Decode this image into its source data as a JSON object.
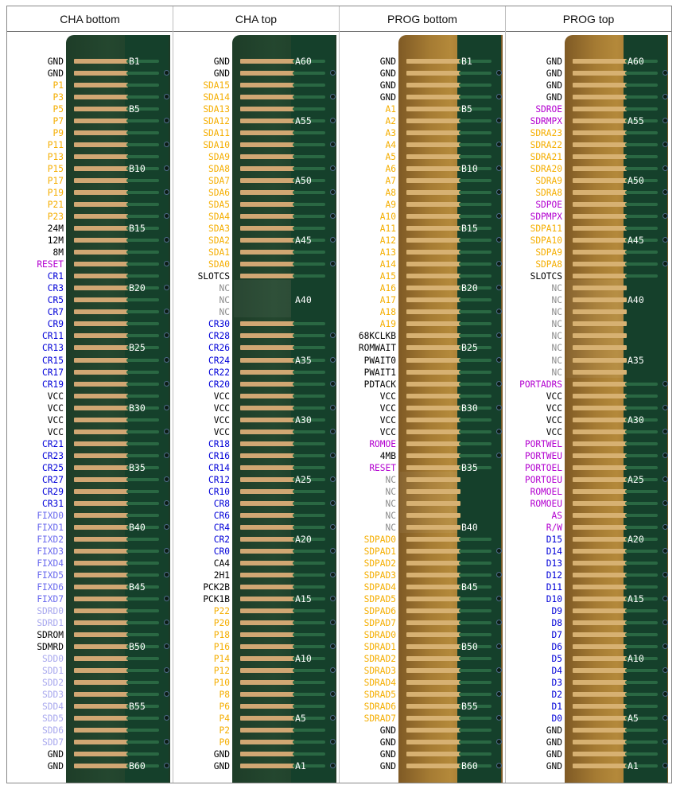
{
  "headers": [
    "CHA bottom",
    "CHA top",
    "PROG bottom",
    "PROG top"
  ],
  "colors": {
    "default": "#000000",
    "orange": "#f5ae00",
    "blue": "#0000d8",
    "magenta": "#b300d0",
    "gray": "#8c8c8c",
    "lightblue": "#6a6aee",
    "lavender": "#a8a8ee"
  },
  "columns": [
    {
      "name": "CHA bottom",
      "board": "green",
      "labels": [
        "GND",
        "GND",
        "P1",
        "P3",
        "P5",
        "P7",
        "P9",
        "P11",
        "P13",
        "P15",
        "P17",
        "P19",
        "P21",
        "P23",
        "24M",
        "12M",
        "8M",
        "RESET",
        "CR1",
        "CR3",
        "CR5",
        "CR7",
        "CR9",
        "CR11",
        "CR13",
        "CR15",
        "CR17",
        "CR19",
        "VCC",
        "VCC",
        "VCC",
        "VCC",
        "CR21",
        "CR23",
        "CR25",
        "CR27",
        "CR29",
        "CR31",
        "FIXD0",
        "FIXD1",
        "FIXD2",
        "FIXD3",
        "FIXD4",
        "FIXD5",
        "FIXD6",
        "FIXD7",
        "SDRD0",
        "SDRD1",
        "SDROM",
        "SDMRD",
        "SDD0",
        "SDD1",
        "SDD2",
        "SDD3",
        "SDD4",
        "SDD5",
        "SDD6",
        "SDD7",
        "GND",
        "GND"
      ],
      "colors": [
        "default",
        "default",
        "orange",
        "orange",
        "orange",
        "orange",
        "orange",
        "orange",
        "orange",
        "orange",
        "orange",
        "orange",
        "orange",
        "orange",
        "default",
        "default",
        "default",
        "magenta",
        "blue",
        "blue",
        "blue",
        "blue",
        "blue",
        "blue",
        "blue",
        "blue",
        "blue",
        "blue",
        "default",
        "default",
        "default",
        "default",
        "blue",
        "blue",
        "blue",
        "blue",
        "blue",
        "blue",
        "lightblue",
        "lightblue",
        "lightblue",
        "lightblue",
        "lightblue",
        "lightblue",
        "lightblue",
        "lightblue",
        "lavender",
        "lavender",
        "default",
        "default",
        "lavender",
        "lavender",
        "lavender",
        "lavender",
        "lavender",
        "lavender",
        "lavender",
        "lavender",
        "default",
        "default"
      ],
      "pin_labels": [
        {
          "row": 0,
          "text": "B1"
        },
        {
          "row": 4,
          "text": "B5"
        },
        {
          "row": 9,
          "text": "B10"
        },
        {
          "row": 14,
          "text": "B15"
        },
        {
          "row": 19,
          "text": "B20"
        },
        {
          "row": 24,
          "text": "B25"
        },
        {
          "row": 29,
          "text": "B30"
        },
        {
          "row": 34,
          "text": "B35"
        },
        {
          "row": 39,
          "text": "B40"
        },
        {
          "row": 44,
          "text": "B45"
        },
        {
          "row": 49,
          "text": "B50"
        },
        {
          "row": 54,
          "text": "B55"
        },
        {
          "row": 59,
          "text": "B60"
        }
      ]
    },
    {
      "name": "CHA top",
      "board": "green",
      "labels": [
        "GND",
        "GND",
        "SDA15",
        "SDA14",
        "SDA13",
        "SDA12",
        "SDA11",
        "SDA10",
        "SDA9",
        "SDA8",
        "SDA7",
        "SDA6",
        "SDA5",
        "SDA4",
        "SDA3",
        "SDA2",
        "SDA1",
        "SDA0",
        "SLOTCS",
        "NC",
        "NC",
        "NC",
        "CR30",
        "CR28",
        "CR26",
        "CR24",
        "CR22",
        "CR20",
        "VCC",
        "VCC",
        "VCC",
        "VCC",
        "CR18",
        "CR16",
        "CR14",
        "CR12",
        "CR10",
        "CR8",
        "CR6",
        "CR4",
        "CR2",
        "CR0",
        "CA4",
        "2H1",
        "PCK2B",
        "PCK1B",
        "P22",
        "P20",
        "P18",
        "P16",
        "P14",
        "P12",
        "P10",
        "P8",
        "P6",
        "P4",
        "P2",
        "P0",
        "GND",
        "GND"
      ],
      "colors": [
        "default",
        "default",
        "orange",
        "orange",
        "orange",
        "orange",
        "orange",
        "orange",
        "orange",
        "orange",
        "orange",
        "orange",
        "orange",
        "orange",
        "orange",
        "orange",
        "orange",
        "orange",
        "default",
        "gray",
        "gray",
        "gray",
        "blue",
        "blue",
        "blue",
        "blue",
        "blue",
        "blue",
        "default",
        "default",
        "default",
        "default",
        "blue",
        "blue",
        "blue",
        "blue",
        "blue",
        "blue",
        "blue",
        "blue",
        "blue",
        "blue",
        "default",
        "default",
        "default",
        "default",
        "orange",
        "orange",
        "orange",
        "orange",
        "orange",
        "orange",
        "orange",
        "orange",
        "orange",
        "orange",
        "orange",
        "orange",
        "default",
        "default"
      ],
      "pin_labels": [
        {
          "row": 0,
          "text": "A60"
        },
        {
          "row": 5,
          "text": "A55"
        },
        {
          "row": 10,
          "text": "A50"
        },
        {
          "row": 15,
          "text": "A45"
        },
        {
          "row": 20,
          "text": "A40"
        },
        {
          "row": 25,
          "text": "A35"
        },
        {
          "row": 30,
          "text": "A30"
        },
        {
          "row": 35,
          "text": "A25"
        },
        {
          "row": 40,
          "text": "A20"
        },
        {
          "row": 45,
          "text": "A15"
        },
        {
          "row": 50,
          "text": "A10"
        },
        {
          "row": 55,
          "text": "A5"
        },
        {
          "row": 59,
          "text": "A1"
        }
      ]
    },
    {
      "name": "PROG bottom",
      "board": "gold",
      "labels": [
        "GND",
        "GND",
        "GND",
        "GND",
        "A1",
        "A2",
        "A3",
        "A4",
        "A5",
        "A6",
        "A7",
        "A8",
        "A9",
        "A10",
        "A11",
        "A12",
        "A13",
        "A14",
        "A15",
        "A16",
        "A17",
        "A18",
        "A19",
        "68KCLKB",
        "ROMWAIT",
        "PWAIT0",
        "PWAIT1",
        "PDTACK",
        "VCC",
        "VCC",
        "VCC",
        "VCC",
        "ROMOE",
        "4MB",
        "RESET",
        "NC",
        "NC",
        "NC",
        "NC",
        "NC",
        "SDPAD0",
        "SDPAD1",
        "SDPAD2",
        "SDPAD3",
        "SDPAD4",
        "SDPAD5",
        "SDPAD6",
        "SDPAD7",
        "SDRAD0",
        "SDRAD1",
        "SDRAD2",
        "SDRAD3",
        "SDRAD4",
        "SDRAD5",
        "SDRAD6",
        "SDRAD7",
        "GND",
        "GND",
        "GND",
        "GND"
      ],
      "colors": [
        "default",
        "default",
        "default",
        "default",
        "orange",
        "orange",
        "orange",
        "orange",
        "orange",
        "orange",
        "orange",
        "orange",
        "orange",
        "orange",
        "orange",
        "orange",
        "orange",
        "orange",
        "orange",
        "orange",
        "orange",
        "orange",
        "orange",
        "default",
        "default",
        "default",
        "default",
        "default",
        "default",
        "default",
        "default",
        "default",
        "magenta",
        "default",
        "magenta",
        "gray",
        "gray",
        "gray",
        "gray",
        "gray",
        "orange",
        "orange",
        "orange",
        "orange",
        "orange",
        "orange",
        "orange",
        "orange",
        "orange",
        "orange",
        "orange",
        "orange",
        "orange",
        "orange",
        "orange",
        "orange",
        "default",
        "default",
        "default",
        "default"
      ],
      "pin_labels": [
        {
          "row": 0,
          "text": "B1"
        },
        {
          "row": 4,
          "text": "B5"
        },
        {
          "row": 9,
          "text": "B10"
        },
        {
          "row": 14,
          "text": "B15"
        },
        {
          "row": 19,
          "text": "B20"
        },
        {
          "row": 24,
          "text": "B25"
        },
        {
          "row": 29,
          "text": "B30"
        },
        {
          "row": 34,
          "text": "B35"
        },
        {
          "row": 39,
          "text": "B40"
        },
        {
          "row": 44,
          "text": "B45"
        },
        {
          "row": 49,
          "text": "B50"
        },
        {
          "row": 54,
          "text": "B55"
        },
        {
          "row": 59,
          "text": "B60"
        }
      ]
    },
    {
      "name": "PROG top",
      "board": "gold",
      "labels": [
        "GND",
        "GND",
        "GND",
        "GND",
        "SDROE",
        "SDRMPX",
        "SDRA23",
        "SDRA22",
        "SDRA21",
        "SDRA20",
        "SDRA9",
        "SDRA8",
        "SDPOE",
        "SDPMPX",
        "SDPA11",
        "SDPA10",
        "SDPA9",
        "SDPA8",
        "SLOTCS",
        "NC",
        "NC",
        "NC",
        "NC",
        "NC",
        "NC",
        "NC",
        "NC",
        "PORTADRS",
        "VCC",
        "VCC",
        "VCC",
        "VCC",
        "PORTWEL",
        "PORTWEU",
        "PORTOEL",
        "PORTOEU",
        "ROMOEL",
        "ROMOEU",
        "AS",
        "R/W",
        "D15",
        "D14",
        "D13",
        "D12",
        "D11",
        "D10",
        "D9",
        "D8",
        "D7",
        "D6",
        "D5",
        "D4",
        "D3",
        "D2",
        "D1",
        "D0",
        "GND",
        "GND",
        "GND",
        "GND"
      ],
      "colors": [
        "default",
        "default",
        "default",
        "default",
        "magenta",
        "magenta",
        "orange",
        "orange",
        "orange",
        "orange",
        "orange",
        "orange",
        "magenta",
        "magenta",
        "orange",
        "orange",
        "orange",
        "orange",
        "default",
        "gray",
        "gray",
        "gray",
        "gray",
        "gray",
        "gray",
        "gray",
        "gray",
        "magenta",
        "default",
        "default",
        "default",
        "default",
        "magenta",
        "magenta",
        "magenta",
        "magenta",
        "magenta",
        "magenta",
        "magenta",
        "magenta",
        "blue",
        "blue",
        "blue",
        "blue",
        "blue",
        "blue",
        "blue",
        "blue",
        "blue",
        "blue",
        "blue",
        "blue",
        "blue",
        "blue",
        "blue",
        "blue",
        "default",
        "default",
        "default",
        "default"
      ],
      "pin_labels": [
        {
          "row": 0,
          "text": "A60"
        },
        {
          "row": 5,
          "text": "A55"
        },
        {
          "row": 10,
          "text": "A50"
        },
        {
          "row": 15,
          "text": "A45"
        },
        {
          "row": 20,
          "text": "A40"
        },
        {
          "row": 25,
          "text": "A35"
        },
        {
          "row": 30,
          "text": "A30"
        },
        {
          "row": 35,
          "text": "A25"
        },
        {
          "row": 40,
          "text": "A20"
        },
        {
          "row": 45,
          "text": "A15"
        },
        {
          "row": 50,
          "text": "A10"
        },
        {
          "row": 55,
          "text": "A5"
        },
        {
          "row": 59,
          "text": "A1"
        }
      ]
    }
  ]
}
